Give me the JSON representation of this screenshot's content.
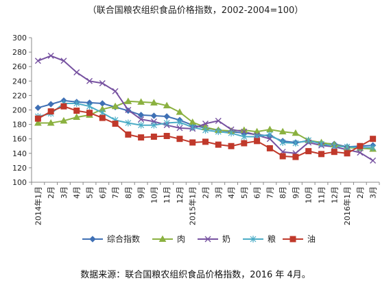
{
  "title": "（联合国粮农组织食品价格指数，2002-2004=100）",
  "source": "数据来源：联合国粮农组织食品价格指数，2016 年 4月。",
  "chart_data": {
    "type": "line",
    "x": [
      "2014年1月",
      "2月",
      "3月",
      "4月",
      "5月",
      "6月",
      "7月",
      "8月",
      "9月",
      "10月",
      "11月",
      "12月",
      "2015年1月",
      "2月",
      "3月",
      "4月",
      "5月",
      "6月",
      "7月",
      "8月",
      "9月",
      "10月",
      "11月",
      "12月",
      "2016年1月",
      "2月",
      "3月"
    ],
    "ylim": [
      100,
      300
    ],
    "yticks": [
      100,
      120,
      140,
      160,
      180,
      200,
      220,
      240,
      260,
      280,
      300
    ],
    "grid": false,
    "legend": "bottom",
    "series": [
      {
        "name": "综合指数",
        "color": "#3f70b5",
        "marker": "diamond",
        "values": [
          203,
          208,
          213,
          211,
          210,
          209,
          204,
          199,
          193,
          192,
          191,
          186,
          179,
          175,
          172,
          170,
          168,
          166,
          164,
          157,
          155,
          157,
          154,
          153,
          149,
          150,
          151
        ]
      },
      {
        "name": "肉",
        "color": "#8bb140",
        "marker": "triangle",
        "values": [
          182,
          182,
          185,
          190,
          193,
          201,
          205,
          212,
          211,
          210,
          206,
          197,
          183,
          176,
          172,
          171,
          172,
          170,
          173,
          170,
          168,
          158,
          155,
          152,
          148,
          147,
          146
        ]
      },
      {
        "name": "奶",
        "color": "#7651a0",
        "marker": "x",
        "values": [
          268,
          275,
          268,
          252,
          240,
          237,
          226,
          200,
          187,
          184,
          179,
          175,
          174,
          181,
          185,
          173,
          170,
          165,
          160,
          142,
          140,
          155,
          151,
          149,
          145,
          141,
          130
        ]
      },
      {
        "name": "粮",
        "color": "#4bacc6",
        "marker": "asterisk",
        "values": [
          191,
          195,
          209,
          209,
          205,
          196,
          186,
          182,
          179,
          179,
          182,
          183,
          176,
          172,
          170,
          168,
          163,
          163,
          166,
          155,
          154,
          158,
          153,
          150,
          149,
          148,
          148
        ]
      },
      {
        "name": "油",
        "color": "#c0392b",
        "marker": "square",
        "values": [
          188,
          198,
          205,
          199,
          196,
          189,
          181,
          166,
          162,
          163,
          164,
          160,
          155,
          156,
          152,
          150,
          154,
          157,
          147,
          136,
          135,
          143,
          139,
          142,
          140,
          150,
          160
        ]
      }
    ]
  }
}
